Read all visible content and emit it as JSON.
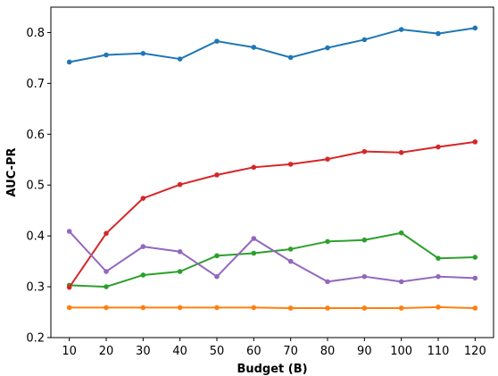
{
  "chart_data": {
    "type": "line",
    "title": "",
    "xlabel": "Budget (B)",
    "ylabel": "AUC-PR",
    "xlim": [
      5,
      125
    ],
    "ylim": [
      0.2,
      0.85
    ],
    "xticks": [
      10,
      20,
      30,
      40,
      50,
      60,
      70,
      80,
      90,
      100,
      110,
      120
    ],
    "yticks": [
      0.2,
      0.3,
      0.4,
      0.5,
      0.6,
      0.7,
      0.8
    ],
    "x": [
      10,
      20,
      30,
      40,
      50,
      60,
      70,
      80,
      90,
      100,
      110,
      120
    ],
    "grid": false,
    "legend": "none",
    "series": [
      {
        "color": "#1f77b4",
        "values": [
          0.742,
          0.756,
          0.759,
          0.748,
          0.783,
          0.771,
          0.751,
          0.77,
          0.786,
          0.806,
          0.798,
          0.809
        ]
      },
      {
        "color": "#ff7f0e",
        "values": [
          0.259,
          0.259,
          0.259,
          0.259,
          0.259,
          0.259,
          0.258,
          0.258,
          0.258,
          0.258,
          0.26,
          0.258
        ]
      },
      {
        "color": "#2ca02c",
        "values": [
          0.303,
          0.3,
          0.323,
          0.33,
          0.361,
          0.366,
          0.374,
          0.389,
          0.392,
          0.406,
          0.356,
          0.358
        ]
      },
      {
        "color": "#d62728",
        "values": [
          0.299,
          0.405,
          0.474,
          0.501,
          0.52,
          0.535,
          0.541,
          0.551,
          0.566,
          0.564,
          0.575,
          0.585
        ]
      },
      {
        "color": "#9467bd",
        "values": [
          0.409,
          0.33,
          0.379,
          0.369,
          0.32,
          0.395,
          0.35,
          0.31,
          0.32,
          0.31,
          0.32,
          0.317
        ]
      }
    ]
  }
}
